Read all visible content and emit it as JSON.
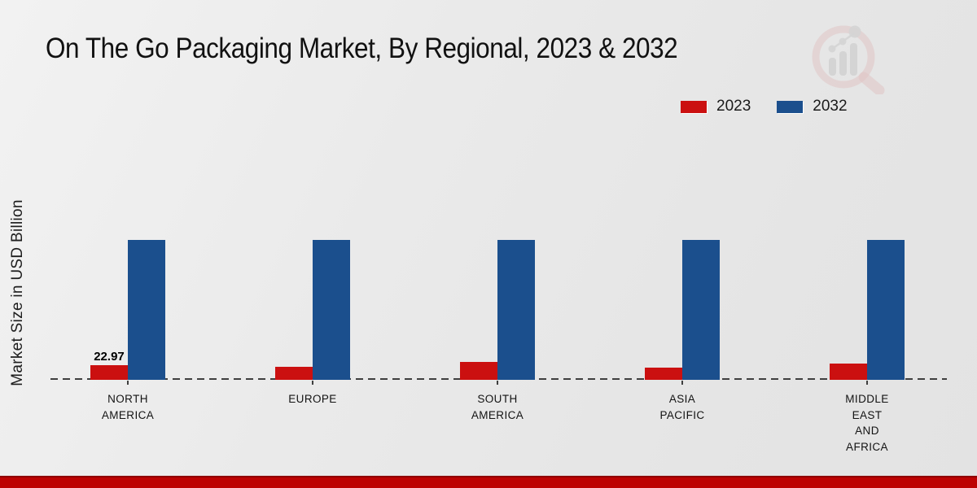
{
  "page": {
    "title": "On The Go Packaging Market, By Regional, 2023 & 2032",
    "brand_logo": "magnifier-bar-chart-watermark",
    "accent_strip_color": "#bd0202",
    "background_color": "#e9e9e9"
  },
  "chart_data": {
    "type": "bar",
    "title": "On The Go Packaging Market, By Regional, 2023 & 2032",
    "xlabel": "",
    "ylabel": "Market Size in USD Billion",
    "categories": [
      "NORTH AMERICA",
      "EUROPE",
      "SOUTH AMERICA",
      "ASIA PACIFIC",
      "MIDDLE EAST AND AFRICA"
    ],
    "category_label_lines": [
      [
        "NORTH",
        "AMERICA"
      ],
      [
        "EUROPE"
      ],
      [
        "SOUTH",
        "AMERICA"
      ],
      [
        "ASIA",
        "PACIFIC"
      ],
      [
        "MIDDLE",
        "EAST",
        "AND",
        "AFRICA"
      ]
    ],
    "series": [
      {
        "name": "2023",
        "color": "#cb1010",
        "values": [
          22.97,
          20.4,
          28.1,
          19.1,
          25.5
        ],
        "data_labels": [
          "22.97",
          "",
          "",
          "",
          ""
        ]
      },
      {
        "name": "2032",
        "color": "#1b4f8d",
        "values": [
          219.5,
          219.5,
          219.5,
          219.5,
          219.5
        ],
        "data_labels": [
          "",
          "",
          "",
          "",
          ""
        ]
      }
    ],
    "legend": {
      "position": "top-right",
      "entries": [
        {
          "label": "2023",
          "color": "#cb1010"
        },
        {
          "label": "2032",
          "color": "#1b4f8d"
        }
      ]
    },
    "axes": {
      "y_axis_visible": false,
      "y_tick_labels_shown": false,
      "gridlines": false,
      "baseline_style": "dashed",
      "only_labeled_value": "22.97 (North America, 2023)"
    }
  }
}
